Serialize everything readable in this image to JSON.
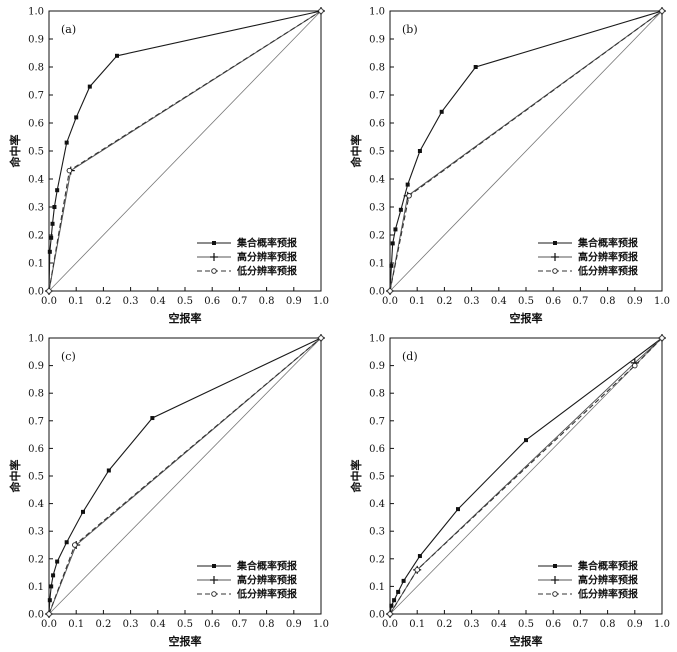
{
  "legend_labels": [
    "集合概率预报",
    "高分辨率预报",
    "低分辨率预报"
  ],
  "chart_data": [
    {
      "type": "line",
      "panel_label": "(a)",
      "xlabel": "空报率",
      "ylabel": "命中率",
      "xlim": [
        0,
        1.0
      ],
      "ylim": [
        0,
        1.0
      ],
      "x_ticks": [
        "0.0",
        "0.1",
        "0.2",
        "0.3",
        "0.4",
        "0.5",
        "0.6",
        "0.7",
        "0.8",
        "0.9",
        "1.0"
      ],
      "y_ticks": [
        "0.0",
        "0.1",
        "0.2",
        "0.3",
        "0.4",
        "0.5",
        "0.6",
        "0.7",
        "0.8",
        "0.9",
        "1.0"
      ],
      "legend_position": "bottom-right",
      "series": [
        {
          "name": "集合概率预报",
          "marker": "square",
          "x": [
            0,
            0.003,
            0.008,
            0.013,
            0.02,
            0.03,
            0.065,
            0.1,
            0.15,
            0.25,
            1.0
          ],
          "y": [
            0,
            0.14,
            0.19,
            0.24,
            0.3,
            0.36,
            0.53,
            0.62,
            0.73,
            0.84,
            1.0
          ]
        },
        {
          "name": "高分辨率预报",
          "marker": "plus",
          "x": [
            0,
            0.08,
            1.0
          ],
          "y": [
            0,
            0.43,
            1.0
          ]
        },
        {
          "name": "低分辨率预报",
          "marker": "circle",
          "x": [
            0,
            0.075,
            1.0
          ],
          "y": [
            0,
            0.43,
            1.0
          ]
        }
      ]
    },
    {
      "type": "line",
      "panel_label": "(b)",
      "xlabel": "空报率",
      "ylabel": "命中率",
      "xlim": [
        0,
        1.0
      ],
      "ylim": [
        0,
        1.0
      ],
      "x_ticks": [
        "0.0",
        "0.1",
        "0.2",
        "0.3",
        "0.4",
        "0.5",
        "0.6",
        "0.7",
        "0.8",
        "0.9",
        "1.0"
      ],
      "y_ticks": [
        "0.0",
        "0.1",
        "0.2",
        "0.3",
        "0.4",
        "0.5",
        "0.6",
        "0.7",
        "0.8",
        "0.9",
        "1.0"
      ],
      "legend_position": "bottom-right",
      "series": [
        {
          "name": "集合概率预报",
          "marker": "square",
          "x": [
            0,
            0.005,
            0.01,
            0.02,
            0.04,
            0.065,
            0.11,
            0.19,
            0.315,
            1.0
          ],
          "y": [
            0,
            0.09,
            0.17,
            0.22,
            0.29,
            0.38,
            0.5,
            0.64,
            0.8,
            1.0
          ]
        },
        {
          "name": "高分辨率预报",
          "marker": "plus",
          "x": [
            0,
            0.065,
            1.0
          ],
          "y": [
            0,
            0.34,
            1.0
          ]
        },
        {
          "name": "低分辨率预报",
          "marker": "circle",
          "x": [
            0,
            0.07,
            1.0
          ],
          "y": [
            0,
            0.34,
            1.0
          ]
        }
      ]
    },
    {
      "type": "line",
      "panel_label": "(c)",
      "xlabel": "空报率",
      "ylabel": "命中率",
      "xlim": [
        0,
        1.0
      ],
      "ylim": [
        0,
        1.0
      ],
      "x_ticks": [
        "0.0",
        "0.1",
        "0.2",
        "0.3",
        "0.4",
        "0.5",
        "0.6",
        "0.7",
        "0.8",
        "0.9",
        "1.0"
      ],
      "y_ticks": [
        "0.0",
        "0.1",
        "0.2",
        "0.3",
        "0.4",
        "0.5",
        "0.6",
        "0.7",
        "0.8",
        "0.9",
        "1.0"
      ],
      "legend_position": "bottom-right",
      "series": [
        {
          "name": "集合概率预报",
          "marker": "square",
          "x": [
            0,
            0.003,
            0.008,
            0.015,
            0.03,
            0.065,
            0.125,
            0.22,
            0.38,
            1.0
          ],
          "y": [
            0,
            0.05,
            0.1,
            0.14,
            0.19,
            0.26,
            0.37,
            0.52,
            0.71,
            1.0
          ]
        },
        {
          "name": "高分辨率预报",
          "marker": "plus",
          "x": [
            0,
            0.1,
            1.0
          ],
          "y": [
            0,
            0.25,
            1.0
          ]
        },
        {
          "name": "低分辨率预报",
          "marker": "circle",
          "x": [
            0,
            0.095,
            1.0
          ],
          "y": [
            0,
            0.25,
            1.0
          ]
        }
      ]
    },
    {
      "type": "line",
      "panel_label": "(d)",
      "xlabel": "空报率",
      "ylabel": "命中率",
      "xlim": [
        0,
        1.0
      ],
      "ylim": [
        0,
        1.0
      ],
      "x_ticks": [
        "0.0",
        "0.1",
        "0.2",
        "0.3",
        "0.4",
        "0.5",
        "0.6",
        "0.7",
        "0.8",
        "0.9",
        "1.0"
      ],
      "y_ticks": [
        "0.0",
        "0.1",
        "0.2",
        "0.3",
        "0.4",
        "0.5",
        "0.6",
        "0.7",
        "0.8",
        "0.9",
        "1.0"
      ],
      "legend_position": "bottom-right",
      "series": [
        {
          "name": "集合概率预报",
          "marker": "square",
          "x": [
            0,
            0.005,
            0.015,
            0.03,
            0.05,
            0.11,
            0.25,
            0.5,
            1.0
          ],
          "y": [
            0,
            0.03,
            0.05,
            0.08,
            0.12,
            0.21,
            0.38,
            0.63,
            1.0
          ]
        },
        {
          "name": "高分辨率预报",
          "marker": "plus",
          "x": [
            0,
            0.1,
            0.9,
            1.0
          ],
          "y": [
            0,
            0.16,
            0.91,
            1.0
          ]
        },
        {
          "name": "低分辨率预报",
          "marker": "circle",
          "x": [
            0,
            0.1,
            0.9,
            1.0
          ],
          "y": [
            0,
            0.16,
            0.9,
            1.0
          ]
        }
      ]
    }
  ]
}
